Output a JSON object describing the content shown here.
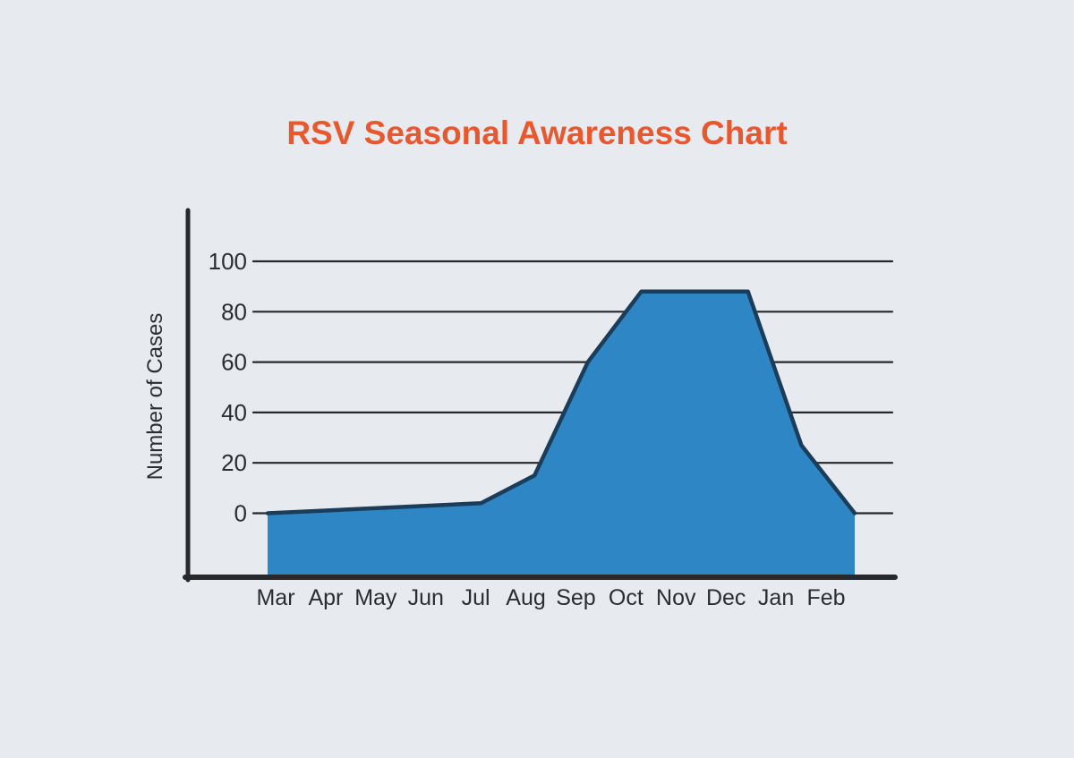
{
  "page": {
    "background_color": "#E7EBEF"
  },
  "chart_data": {
    "type": "area",
    "title": "RSV Seasonal Awareness Chart",
    "xlabel": "",
    "ylabel": "Number of Cases",
    "categories": [
      "Mar",
      "Apr",
      "May",
      "Jun",
      "Jul",
      "Aug",
      "Sep",
      "Oct",
      "Nov",
      "Dec",
      "Jan",
      "Feb"
    ],
    "values": [
      0,
      1,
      2,
      3,
      4,
      15,
      60,
      88,
      88,
      88,
      27,
      0
    ],
    "y_ticks": [
      100,
      80,
      60,
      40,
      20,
      0
    ],
    "ylim": [
      0,
      100
    ],
    "grid": true,
    "legend": false,
    "colors": {
      "title": "#E8582E",
      "area_fill": "#2E86C4",
      "line_stroke": "#1C3D59",
      "axis": "#26282B",
      "gridline": "#26282B",
      "text": "#2A2D31"
    }
  }
}
